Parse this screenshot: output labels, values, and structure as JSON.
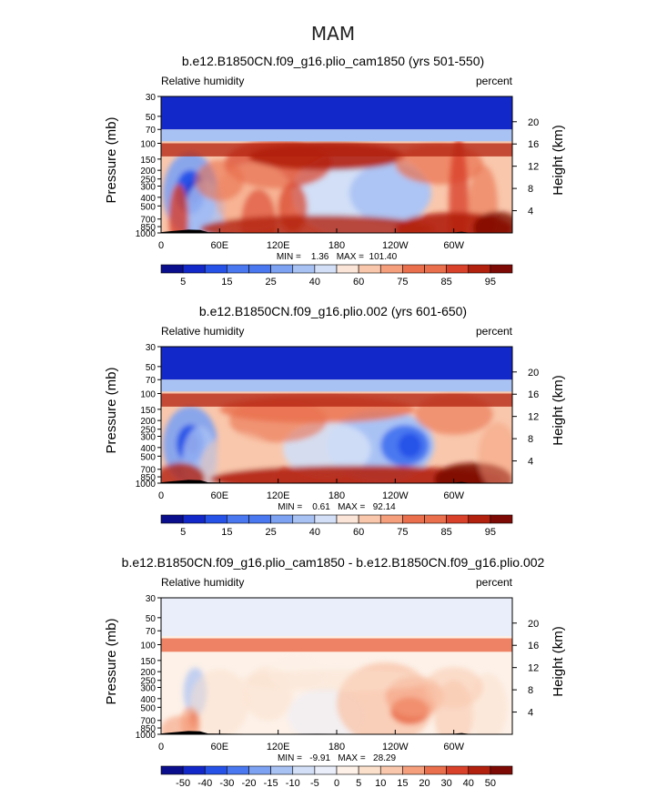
{
  "figure": {
    "season": "MAM"
  },
  "colors": {
    "panel_cmap": [
      "#0b0e8c",
      "#1328c8",
      "#2652e8",
      "#4a78f0",
      "#7ea2f2",
      "#a9c2f4",
      "#d2dff6",
      "#fbe5d8",
      "#f9c7ac",
      "#f59f7d",
      "#ea6f4c",
      "#d9412a",
      "#b2200e",
      "#7d0a04"
    ],
    "diff_cmap": [
      "#0b0e8c",
      "#1328c8",
      "#2652e8",
      "#4a78f0",
      "#7ea2f2",
      "#a9c2f4",
      "#d2dff6",
      "#e9eefa",
      "#fdf1e8",
      "#fbe0cc",
      "#f9c7ac",
      "#f59f7d",
      "#ea6f4c",
      "#d9412a",
      "#b2200e",
      "#7d0a04"
    ],
    "topography": "#000000"
  },
  "chart_data": [
    {
      "type": "heatmap",
      "title": "b.e12.B1850CN.f09_g16.plio_cam1850 (yrs 501-550)",
      "subtitle_left": "Relative humidity",
      "subtitle_right": "percent",
      "ylabel": "Pressure (mb)",
      "ylabel_right": "Height (km)",
      "x_ticks": [
        "0",
        "60E",
        "120E",
        "180",
        "120W",
        "60W"
      ],
      "x_tick_values": [
        0,
        60,
        120,
        180,
        240,
        300
      ],
      "xlim": [
        0,
        360
      ],
      "y_ticks": [
        "30",
        "50",
        "70",
        "100",
        "150",
        "200",
        "250",
        "300",
        "400",
        "500",
        "700",
        "850",
        "1000"
      ],
      "y_tick_values": [
        30,
        50,
        70,
        100,
        150,
        200,
        250,
        300,
        400,
        500,
        700,
        850,
        1000
      ],
      "ylim": [
        30,
        1000
      ],
      "height_ticks": [
        "20",
        "16",
        "12",
        "8",
        "4"
      ],
      "height_tick_values_km": [
        20,
        16,
        12,
        8,
        4
      ],
      "stats": "MIN =    1.36   MAX =  101.40",
      "min": 1.36,
      "max": 101.4,
      "colorbar_levels": [
        5,
        10,
        15,
        20,
        25,
        30,
        40,
        50,
        60,
        70,
        75,
        80,
        85,
        90,
        95
      ],
      "colorbar_labels": [
        "5",
        "15",
        "25",
        "40",
        "60",
        "75",
        "85",
        "95"
      ],
      "colorbar_label_values": [
        5,
        15,
        25,
        40,
        60,
        75,
        85,
        95
      ]
    },
    {
      "type": "heatmap",
      "title": "b.e12.B1850CN.f09_g16.plio.002 (yrs 601-650)",
      "subtitle_left": "Relative humidity",
      "subtitle_right": "percent",
      "ylabel": "Pressure (mb)",
      "ylabel_right": "Height (km)",
      "x_ticks": [
        "0",
        "60E",
        "120E",
        "180",
        "120W",
        "60W"
      ],
      "x_tick_values": [
        0,
        60,
        120,
        180,
        240,
        300
      ],
      "xlim": [
        0,
        360
      ],
      "y_ticks": [
        "30",
        "50",
        "70",
        "100",
        "150",
        "200",
        "250",
        "300",
        "400",
        "500",
        "700",
        "850",
        "1000"
      ],
      "y_tick_values": [
        30,
        50,
        70,
        100,
        150,
        200,
        250,
        300,
        400,
        500,
        700,
        850,
        1000
      ],
      "ylim": [
        30,
        1000
      ],
      "height_ticks": [
        "20",
        "16",
        "12",
        "8",
        "4"
      ],
      "height_tick_values_km": [
        20,
        16,
        12,
        8,
        4
      ],
      "stats": "MIN =    0.61   MAX =   92.14",
      "min": 0.61,
      "max": 92.14,
      "colorbar_levels": [
        5,
        10,
        15,
        20,
        25,
        30,
        40,
        50,
        60,
        70,
        75,
        80,
        85,
        90,
        95
      ],
      "colorbar_labels": [
        "5",
        "15",
        "25",
        "40",
        "60",
        "75",
        "85",
        "95"
      ],
      "colorbar_label_values": [
        5,
        15,
        25,
        40,
        60,
        75,
        85,
        95
      ]
    },
    {
      "type": "heatmap",
      "title": "b.e12.B1850CN.f09_g16.plio_cam1850 - b.e12.B1850CN.f09_g16.plio.002",
      "subtitle_left": "Relative humidity",
      "subtitle_right": "percent",
      "ylabel": "Pressure (mb)",
      "ylabel_right": "Height (km)",
      "x_ticks": [
        "0",
        "60E",
        "120E",
        "180",
        "120W",
        "60W"
      ],
      "x_tick_values": [
        0,
        60,
        120,
        180,
        240,
        300
      ],
      "xlim": [
        0,
        360
      ],
      "y_ticks": [
        "30",
        "50",
        "70",
        "100",
        "150",
        "200",
        "250",
        "300",
        "400",
        "500",
        "700",
        "850",
        "1000"
      ],
      "y_tick_values": [
        30,
        50,
        70,
        100,
        150,
        200,
        250,
        300,
        400,
        500,
        700,
        850,
        1000
      ],
      "ylim": [
        30,
        1000
      ],
      "height_ticks": [
        "20",
        "16",
        "12",
        "8",
        "4"
      ],
      "height_tick_values_km": [
        20,
        16,
        12,
        8,
        4
      ],
      "stats": "MIN =   -9.91   MAX =   28.29",
      "min": -9.91,
      "max": 28.29,
      "colorbar_levels": [
        -50,
        -40,
        -30,
        -20,
        -15,
        -10,
        -5,
        0,
        5,
        10,
        15,
        20,
        30,
        40,
        50
      ],
      "colorbar_labels": [
        "-50",
        "-40",
        "-30",
        "-20",
        "-15",
        "-10",
        "-5",
        "0",
        "5",
        "10",
        "15",
        "20",
        "30",
        "40",
        "50"
      ],
      "colorbar_label_values": [
        -50,
        -40,
        -30,
        -20,
        -15,
        -10,
        -5,
        0,
        5,
        10,
        15,
        20,
        30,
        40,
        50
      ]
    }
  ]
}
